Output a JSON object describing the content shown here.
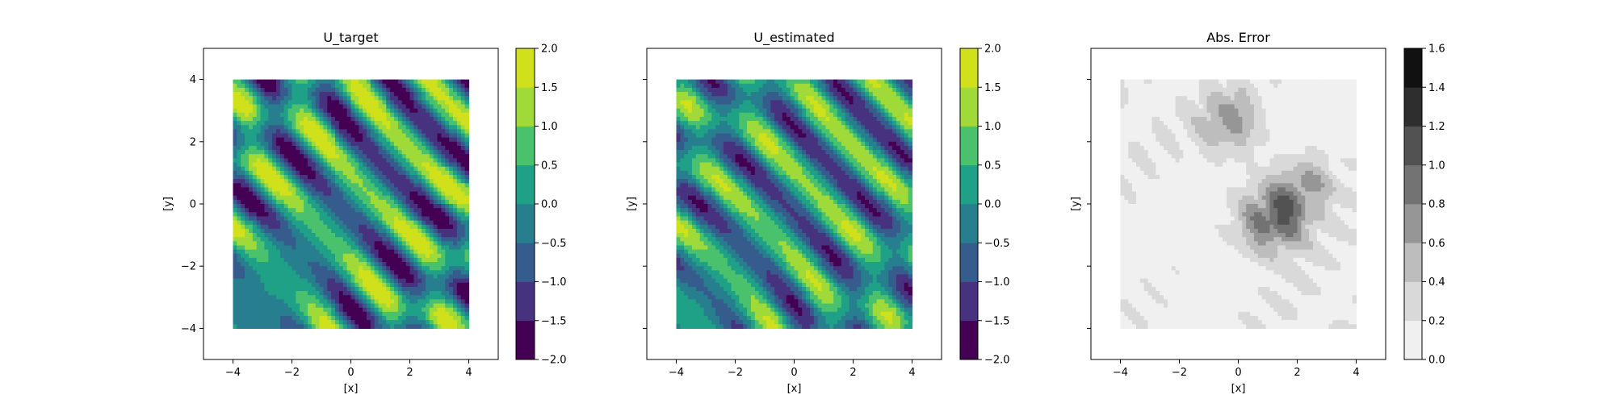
{
  "chart_data": [
    {
      "type": "heatmap",
      "title": "U_target",
      "xlabel": "[x]",
      "ylabel": "[y]",
      "xlim": [
        -5,
        5
      ],
      "ylim": [
        -5,
        5
      ],
      "data_extent": [
        -4,
        4,
        -4,
        4
      ],
      "x_ticks": [
        -4,
        -2,
        0,
        2,
        4
      ],
      "y_ticks": [
        -4,
        -2,
        0,
        2,
        4
      ],
      "x_tick_labels": [
        "−4",
        "−2",
        "0",
        "2",
        "4"
      ],
      "y_tick_labels": [
        "−4",
        "−2",
        "0",
        "2",
        "4"
      ],
      "show_y_tick_labels": true,
      "colormap": "viridis",
      "colorbar": {
        "levels": [
          -2.0,
          -1.5,
          -1.0,
          -0.5,
          0.0,
          0.5,
          1.0,
          1.5,
          2.0
        ],
        "tick_labels": [
          "−2.0",
          "−1.5",
          "−1.0",
          "−0.5",
          "0.0",
          "0.5",
          "1.0",
          "1.5",
          "2.0"
        ],
        "colors": [
          "#440154",
          "#46327e",
          "#365c8d",
          "#277f8e",
          "#1fa187",
          "#4ac16d",
          "#a0da39",
          "#d0e11c"
        ]
      }
    },
    {
      "type": "heatmap",
      "title": "U_estimated",
      "xlabel": "[x]",
      "ylabel": "[y]",
      "xlim": [
        -5,
        5
      ],
      "ylim": [
        -5,
        5
      ],
      "data_extent": [
        -4,
        4,
        -4,
        4
      ],
      "x_ticks": [
        -4,
        -2,
        0,
        2,
        4
      ],
      "y_ticks": [
        -4,
        -2,
        0,
        2,
        4
      ],
      "x_tick_labels": [
        "−4",
        "−2",
        "0",
        "2",
        "4"
      ],
      "y_tick_labels": [
        "",
        "",
        "",
        "",
        ""
      ],
      "show_y_tick_labels": false,
      "colormap": "viridis",
      "colorbar": {
        "levels": [
          -2.0,
          -1.5,
          -1.0,
          -0.5,
          0.0,
          0.5,
          1.0,
          1.5,
          2.0
        ],
        "tick_labels": [
          "−2.0",
          "−1.5",
          "−1.0",
          "−0.5",
          "0.0",
          "0.5",
          "1.0",
          "1.5",
          "2.0"
        ],
        "colors": [
          "#440154",
          "#46327e",
          "#365c8d",
          "#277f8e",
          "#1fa187",
          "#4ac16d",
          "#a0da39",
          "#d0e11c"
        ]
      }
    },
    {
      "type": "heatmap",
      "title": "Abs. Error",
      "xlabel": "[x]",
      "ylabel": "[y]",
      "xlim": [
        -5,
        5
      ],
      "ylim": [
        -5,
        5
      ],
      "data_extent": [
        -4,
        4,
        -4,
        4
      ],
      "x_ticks": [
        -4,
        -2,
        0,
        2,
        4
      ],
      "y_ticks": [
        -4,
        -2,
        0,
        2,
        4
      ],
      "x_tick_labels": [
        "−4",
        "−2",
        "0",
        "2",
        "4"
      ],
      "y_tick_labels": [
        "",
        "",
        "",
        "",
        ""
      ],
      "show_y_tick_labels": false,
      "colormap": "Greys",
      "colorbar": {
        "levels": [
          0.0,
          0.2,
          0.4,
          0.6,
          0.8,
          1.0,
          1.2,
          1.4,
          1.6
        ],
        "tick_labels": [
          "0.0",
          "0.2",
          "0.4",
          "0.6",
          "0.8",
          "1.0",
          "1.2",
          "1.4",
          "1.6"
        ],
        "colors": [
          "#f0f0f0",
          "#d9d9d9",
          "#bdbdbd",
          "#969696",
          "#737373",
          "#525252",
          "#2e2e2e",
          "#111111"
        ]
      }
    }
  ]
}
